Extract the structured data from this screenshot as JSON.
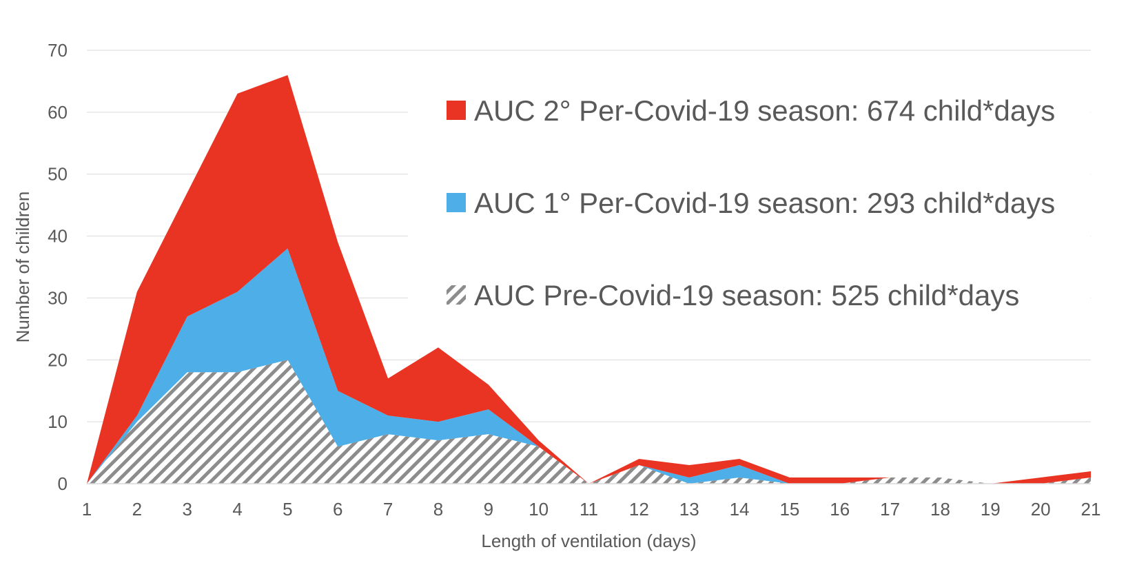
{
  "chart_data": {
    "type": "area",
    "stacked": true,
    "xlabel": "Length of ventilation (days)",
    "ylabel": "Number of children",
    "ylim": [
      0,
      70
    ],
    "yticks": [
      0,
      10,
      20,
      30,
      40,
      50,
      60,
      70
    ],
    "x": [
      1,
      2,
      3,
      4,
      5,
      6,
      7,
      8,
      9,
      10,
      11,
      12,
      13,
      14,
      15,
      16,
      17,
      18,
      19,
      20,
      21
    ],
    "grid": true,
    "legend_position": "top-right",
    "series": [
      {
        "name": "AUC Pre-Covid-19 season: 525 child*days",
        "color": "#8c8c8c",
        "pattern": "diagonal-stripes",
        "values": [
          0,
          10,
          18,
          18,
          20,
          6,
          8,
          7,
          8,
          6,
          0,
          3,
          0,
          1,
          0,
          0,
          1,
          1,
          0,
          0,
          1
        ]
      },
      {
        "name": "AUC 1° Per-Covid-19 season: 293 child*days",
        "color": "#4daee8",
        "pattern": "solid",
        "values": [
          0,
          1,
          9,
          13,
          18,
          9,
          3,
          3,
          4,
          0,
          0,
          0,
          1,
          2,
          0,
          0,
          0,
          0,
          0,
          0,
          0
        ]
      },
      {
        "name": "AUC 2° Per-Covid-19 season: 674 child*days",
        "color": "#e93323",
        "pattern": "solid",
        "values": [
          0,
          20,
          20,
          32,
          28,
          24,
          6,
          12,
          4,
          1,
          0,
          1,
          2,
          1,
          1,
          1,
          0,
          0,
          0,
          1,
          1
        ]
      }
    ],
    "legend_order": [
      2,
      1,
      0
    ]
  }
}
